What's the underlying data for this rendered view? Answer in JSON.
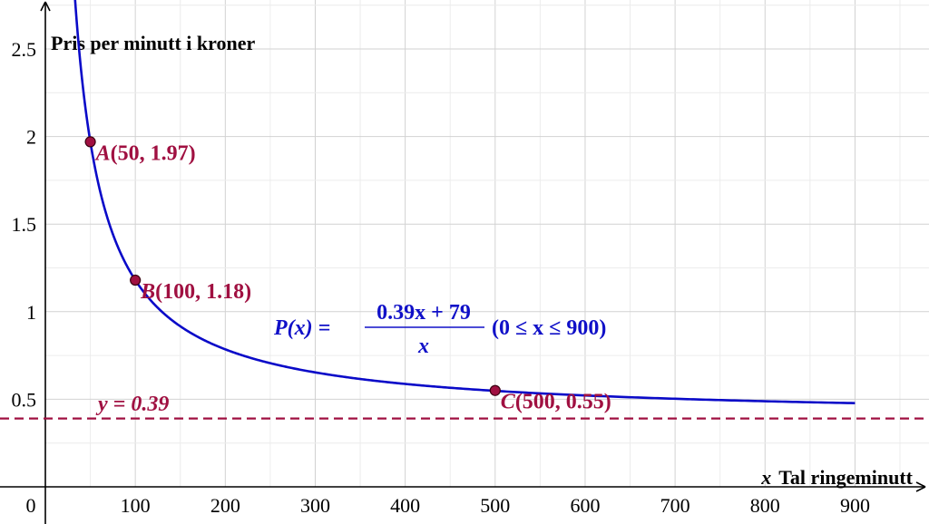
{
  "chart_data": {
    "type": "line",
    "title": "",
    "xlabel_var": "x",
    "xlabel": "Tal ringeminutt",
    "ylabel": "Pris per  minutt i kroner",
    "xlim": [
      0,
      980
    ],
    "ylim": [
      0,
      2.75
    ],
    "x_ticks": [
      0,
      100,
      200,
      300,
      400,
      500,
      600,
      700,
      800,
      900
    ],
    "y_ticks": [
      0.5,
      1,
      1.5,
      2,
      2.5
    ],
    "x_tick_labels": [
      "0",
      "100",
      "200",
      "300",
      "400",
      "500",
      "600",
      "700",
      "800",
      "900"
    ],
    "y_tick_labels": [
      "0.5",
      "1",
      "1.5",
      "2",
      "2.5"
    ],
    "grid": true,
    "x_grid_step": 50,
    "y_grid_step": 0.25,
    "function": {
      "name": "P",
      "a": 0.39,
      "b": 79,
      "domain": [
        0,
        900
      ],
      "color": "#0a0ac8",
      "label": {
        "lhs": "P(x) =",
        "numerator": "0.39x + 79",
        "denominator": "x",
        "domain_text": "(0 ≤ x ≤ 900)"
      }
    },
    "asymptote": {
      "y": 0.39,
      "label": "y = 0.39",
      "color": "#a01041",
      "style": "dashed"
    },
    "points": [
      {
        "name": "A",
        "x": 50,
        "y": 1.97,
        "label": "A(50, 1.97)"
      },
      {
        "name": "B",
        "x": 100,
        "y": 1.18,
        "label": "B(100, 1.18)"
      },
      {
        "name": "C",
        "x": 500,
        "y": 0.55,
        "label": "C(500, 0.55)"
      }
    ],
    "point_color": "#a01041"
  }
}
